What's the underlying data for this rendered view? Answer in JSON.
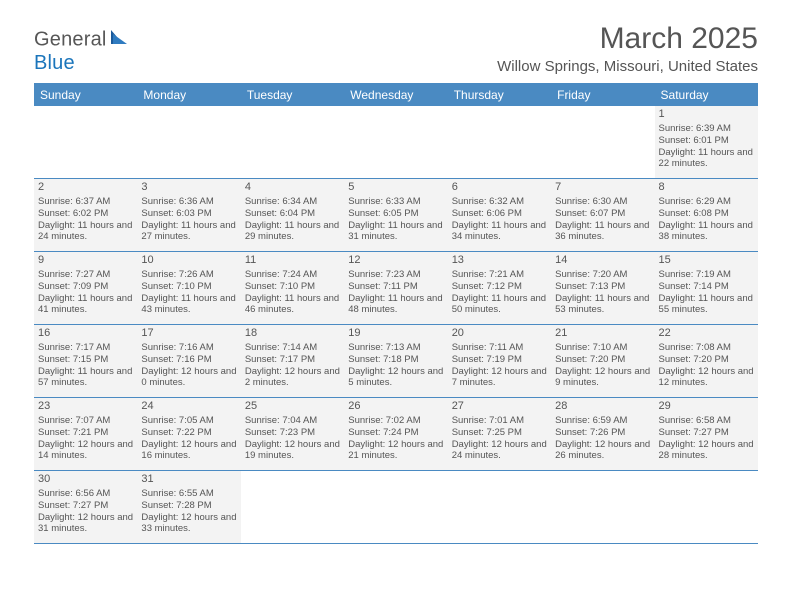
{
  "header": {
    "logo_text_1": "Genera",
    "logo_text_2": "l",
    "logo_text_3": "Blue",
    "month_title": "March 2025",
    "location": "Willow Springs, Missouri, United States"
  },
  "calendar": {
    "days_of_week": [
      "Sunday",
      "Monday",
      "Tuesday",
      "Wednesday",
      "Thursday",
      "Friday",
      "Saturday"
    ],
    "weeks": [
      [
        {
          "day": "",
          "sunrise": "",
          "sunset": "",
          "daylight": ""
        },
        {
          "day": "",
          "sunrise": "",
          "sunset": "",
          "daylight": ""
        },
        {
          "day": "",
          "sunrise": "",
          "sunset": "",
          "daylight": ""
        },
        {
          "day": "",
          "sunrise": "",
          "sunset": "",
          "daylight": ""
        },
        {
          "day": "",
          "sunrise": "",
          "sunset": "",
          "daylight": ""
        },
        {
          "day": "",
          "sunrise": "",
          "sunset": "",
          "daylight": ""
        },
        {
          "day": "1",
          "sunrise": "Sunrise: 6:39 AM",
          "sunset": "Sunset: 6:01 PM",
          "daylight": "Daylight: 11 hours and 22 minutes."
        }
      ],
      [
        {
          "day": "2",
          "sunrise": "Sunrise: 6:37 AM",
          "sunset": "Sunset: 6:02 PM",
          "daylight": "Daylight: 11 hours and 24 minutes."
        },
        {
          "day": "3",
          "sunrise": "Sunrise: 6:36 AM",
          "sunset": "Sunset: 6:03 PM",
          "daylight": "Daylight: 11 hours and 27 minutes."
        },
        {
          "day": "4",
          "sunrise": "Sunrise: 6:34 AM",
          "sunset": "Sunset: 6:04 PM",
          "daylight": "Daylight: 11 hours and 29 minutes."
        },
        {
          "day": "5",
          "sunrise": "Sunrise: 6:33 AM",
          "sunset": "Sunset: 6:05 PM",
          "daylight": "Daylight: 11 hours and 31 minutes."
        },
        {
          "day": "6",
          "sunrise": "Sunrise: 6:32 AM",
          "sunset": "Sunset: 6:06 PM",
          "daylight": "Daylight: 11 hours and 34 minutes."
        },
        {
          "day": "7",
          "sunrise": "Sunrise: 6:30 AM",
          "sunset": "Sunset: 6:07 PM",
          "daylight": "Daylight: 11 hours and 36 minutes."
        },
        {
          "day": "8",
          "sunrise": "Sunrise: 6:29 AM",
          "sunset": "Sunset: 6:08 PM",
          "daylight": "Daylight: 11 hours and 38 minutes."
        }
      ],
      [
        {
          "day": "9",
          "sunrise": "Sunrise: 7:27 AM",
          "sunset": "Sunset: 7:09 PM",
          "daylight": "Daylight: 11 hours and 41 minutes."
        },
        {
          "day": "10",
          "sunrise": "Sunrise: 7:26 AM",
          "sunset": "Sunset: 7:10 PM",
          "daylight": "Daylight: 11 hours and 43 minutes."
        },
        {
          "day": "11",
          "sunrise": "Sunrise: 7:24 AM",
          "sunset": "Sunset: 7:10 PM",
          "daylight": "Daylight: 11 hours and 46 minutes."
        },
        {
          "day": "12",
          "sunrise": "Sunrise: 7:23 AM",
          "sunset": "Sunset: 7:11 PM",
          "daylight": "Daylight: 11 hours and 48 minutes."
        },
        {
          "day": "13",
          "sunrise": "Sunrise: 7:21 AM",
          "sunset": "Sunset: 7:12 PM",
          "daylight": "Daylight: 11 hours and 50 minutes."
        },
        {
          "day": "14",
          "sunrise": "Sunrise: 7:20 AM",
          "sunset": "Sunset: 7:13 PM",
          "daylight": "Daylight: 11 hours and 53 minutes."
        },
        {
          "day": "15",
          "sunrise": "Sunrise: 7:19 AM",
          "sunset": "Sunset: 7:14 PM",
          "daylight": "Daylight: 11 hours and 55 minutes."
        }
      ],
      [
        {
          "day": "16",
          "sunrise": "Sunrise: 7:17 AM",
          "sunset": "Sunset: 7:15 PM",
          "daylight": "Daylight: 11 hours and 57 minutes."
        },
        {
          "day": "17",
          "sunrise": "Sunrise: 7:16 AM",
          "sunset": "Sunset: 7:16 PM",
          "daylight": "Daylight: 12 hours and 0 minutes."
        },
        {
          "day": "18",
          "sunrise": "Sunrise: 7:14 AM",
          "sunset": "Sunset: 7:17 PM",
          "daylight": "Daylight: 12 hours and 2 minutes."
        },
        {
          "day": "19",
          "sunrise": "Sunrise: 7:13 AM",
          "sunset": "Sunset: 7:18 PM",
          "daylight": "Daylight: 12 hours and 5 minutes."
        },
        {
          "day": "20",
          "sunrise": "Sunrise: 7:11 AM",
          "sunset": "Sunset: 7:19 PM",
          "daylight": "Daylight: 12 hours and 7 minutes."
        },
        {
          "day": "21",
          "sunrise": "Sunrise: 7:10 AM",
          "sunset": "Sunset: 7:20 PM",
          "daylight": "Daylight: 12 hours and 9 minutes."
        },
        {
          "day": "22",
          "sunrise": "Sunrise: 7:08 AM",
          "sunset": "Sunset: 7:20 PM",
          "daylight": "Daylight: 12 hours and 12 minutes."
        }
      ],
      [
        {
          "day": "23",
          "sunrise": "Sunrise: 7:07 AM",
          "sunset": "Sunset: 7:21 PM",
          "daylight": "Daylight: 12 hours and 14 minutes."
        },
        {
          "day": "24",
          "sunrise": "Sunrise: 7:05 AM",
          "sunset": "Sunset: 7:22 PM",
          "daylight": "Daylight: 12 hours and 16 minutes."
        },
        {
          "day": "25",
          "sunrise": "Sunrise: 7:04 AM",
          "sunset": "Sunset: 7:23 PM",
          "daylight": "Daylight: 12 hours and 19 minutes."
        },
        {
          "day": "26",
          "sunrise": "Sunrise: 7:02 AM",
          "sunset": "Sunset: 7:24 PM",
          "daylight": "Daylight: 12 hours and 21 minutes."
        },
        {
          "day": "27",
          "sunrise": "Sunrise: 7:01 AM",
          "sunset": "Sunset: 7:25 PM",
          "daylight": "Daylight: 12 hours and 24 minutes."
        },
        {
          "day": "28",
          "sunrise": "Sunrise: 6:59 AM",
          "sunset": "Sunset: 7:26 PM",
          "daylight": "Daylight: 12 hours and 26 minutes."
        },
        {
          "day": "29",
          "sunrise": "Sunrise: 6:58 AM",
          "sunset": "Sunset: 7:27 PM",
          "daylight": "Daylight: 12 hours and 28 minutes."
        }
      ],
      [
        {
          "day": "30",
          "sunrise": "Sunrise: 6:56 AM",
          "sunset": "Sunset: 7:27 PM",
          "daylight": "Daylight: 12 hours and 31 minutes."
        },
        {
          "day": "31",
          "sunrise": "Sunrise: 6:55 AM",
          "sunset": "Sunset: 7:28 PM",
          "daylight": "Daylight: 12 hours and 33 minutes."
        },
        {
          "day": "",
          "sunrise": "",
          "sunset": "",
          "daylight": ""
        },
        {
          "day": "",
          "sunrise": "",
          "sunset": "",
          "daylight": ""
        },
        {
          "day": "",
          "sunrise": "",
          "sunset": "",
          "daylight": ""
        },
        {
          "day": "",
          "sunrise": "",
          "sunset": "",
          "daylight": ""
        },
        {
          "day": "",
          "sunrise": "",
          "sunset": "",
          "daylight": ""
        }
      ]
    ]
  },
  "styles": {
    "header_color": "#4a8ac2",
    "text_color": "#555555",
    "shade_color": "#f3f3f3",
    "border_color": "#4a8ac2"
  }
}
